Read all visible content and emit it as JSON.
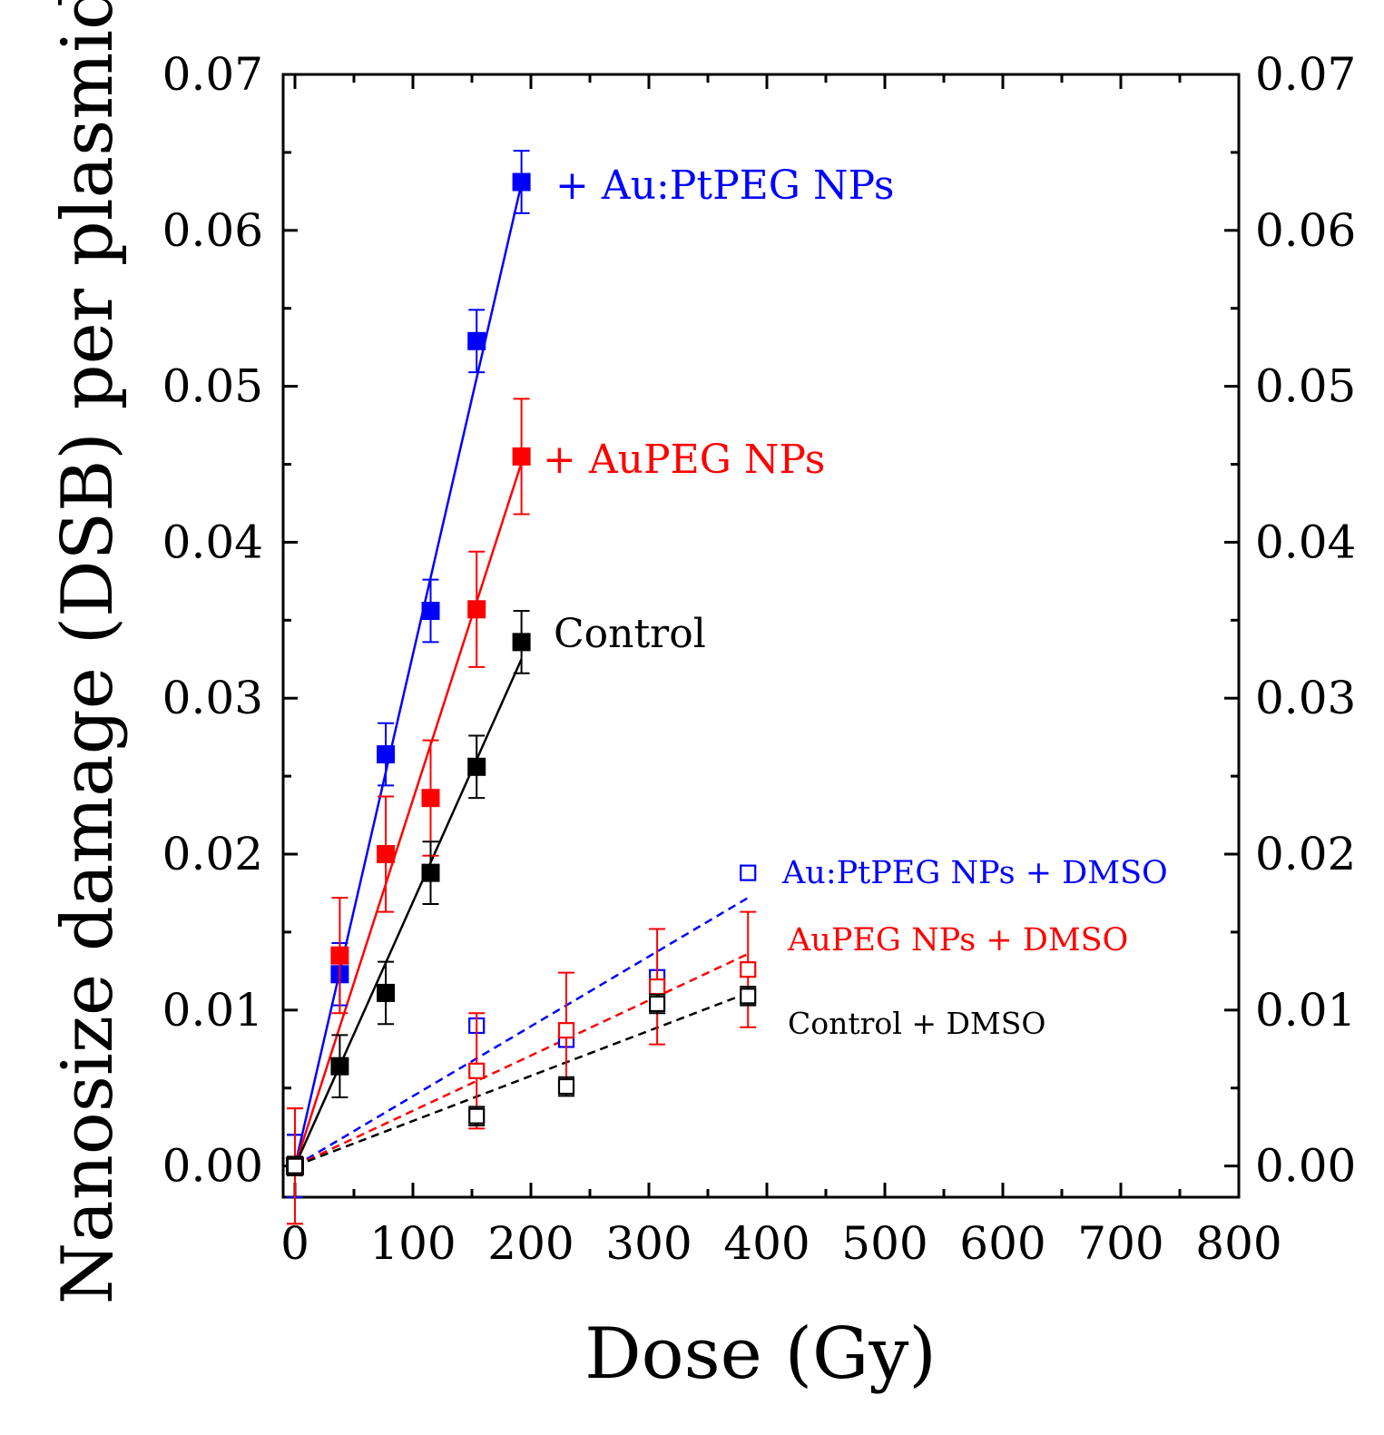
{
  "chart_data": {
    "type": "scatter",
    "xlabel": "Dose (Gy)",
    "ylabel": "Nanosize damage (DSB) per plasmid",
    "xlim": [
      -10,
      800
    ],
    "ylim": [
      -0.002,
      0.07
    ],
    "xticks": [
      "0",
      "100",
      "200",
      "300",
      "400",
      "500",
      "600",
      "700",
      "800"
    ],
    "yticks": [
      "0.00",
      "0.01",
      "0.02",
      "0.03",
      "0.04",
      "0.05",
      "0.06",
      "0.07"
    ],
    "right_axis": true,
    "grid": false,
    "series": [
      {
        "name": "+ Au:PtPEG NPs",
        "color": "#0000ff",
        "marker": "filled-square",
        "fit": "solid",
        "x": [
          0,
          38,
          77,
          115,
          154,
          192
        ],
        "y": [
          0.0,
          0.0123,
          0.0264,
          0.0356,
          0.0529,
          0.0631
        ],
        "err": [
          0.002,
          0.002,
          0.002,
          0.002,
          0.002,
          0.002
        ],
        "fit_line": [
          [
            0,
            0.0
          ],
          [
            192,
            0.063
          ]
        ]
      },
      {
        "name": "+ AuPEG NPs",
        "color": "#ff0000",
        "marker": "filled-square",
        "fit": "solid",
        "x": [
          0,
          38,
          77,
          115,
          154,
          192
        ],
        "y": [
          0.0,
          0.0135,
          0.02,
          0.0236,
          0.0357,
          0.0455
        ],
        "err": [
          0.0037,
          0.0037,
          0.0037,
          0.0037,
          0.0037,
          0.0037
        ],
        "fit_line": [
          [
            0,
            0.0
          ],
          [
            192,
            0.0451
          ]
        ]
      },
      {
        "name": "Control",
        "color": "#000000",
        "marker": "filled-square",
        "fit": "solid",
        "x": [
          0,
          38,
          77,
          115,
          154,
          192
        ],
        "y": [
          0.0,
          0.0064,
          0.0111,
          0.0188,
          0.0256,
          0.0336
        ],
        "err": [
          0.002,
          0.002,
          0.002,
          0.002,
          0.002,
          0.002
        ],
        "fit_line": [
          [
            0,
            0.0
          ],
          [
            192,
            0.0325
          ]
        ]
      },
      {
        "name": "Au:PtPEG NPs + DMSO",
        "color": "#0000ff",
        "marker": "open-square",
        "fit": "dashed",
        "x": [
          0,
          154,
          230,
          307,
          384
        ],
        "y": [
          0.0,
          0.009,
          0.0081,
          0.0121,
          0.0188
        ],
        "err": [
          0.002,
          0.0,
          0.0,
          0.0,
          0.0
        ],
        "fit_line": [
          [
            0,
            0.0
          ],
          [
            384,
            0.0172
          ]
        ]
      },
      {
        "name": "AuPEG NPs + DMSO",
        "color": "#ff0000",
        "marker": "open-square",
        "fit": "dashed",
        "x": [
          0,
          154,
          230,
          307,
          384
        ],
        "y": [
          0.0,
          0.0061,
          0.0087,
          0.0115,
          0.0126
        ],
        "err": [
          0.0037,
          0.0037,
          0.0037,
          0.0037,
          0.0037
        ],
        "fit_line": [
          [
            0,
            0.0
          ],
          [
            384,
            0.0136
          ]
        ]
      },
      {
        "name": "Control + DMSO",
        "color": "#000000",
        "marker": "open-square",
        "fit": "dashed",
        "x": [
          0,
          154,
          230,
          307,
          384
        ],
        "y": [
          0.0,
          0.0032,
          0.0051,
          0.0104,
          0.0109
        ],
        "err": [
          0.0006,
          0.0006,
          0.0006,
          0.0006,
          0.0006
        ],
        "fit_line": [
          [
            0,
            0.0
          ],
          [
            384,
            0.0111
          ]
        ]
      }
    ],
    "annotations": [
      {
        "text": "+ Au:PtPEG NPs",
        "color": "#0000ff"
      },
      {
        "text": "+ AuPEG NPs",
        "color": "#ff0000"
      },
      {
        "text": "Control",
        "color": "#000000"
      },
      {
        "text": "Au:PtPEG NPs + DMSO",
        "color": "#0000ff"
      },
      {
        "text": "AuPEG NPs + DMSO",
        "color": "#ff0000"
      },
      {
        "text": "Control + DMSO",
        "color": "#000000"
      }
    ]
  }
}
